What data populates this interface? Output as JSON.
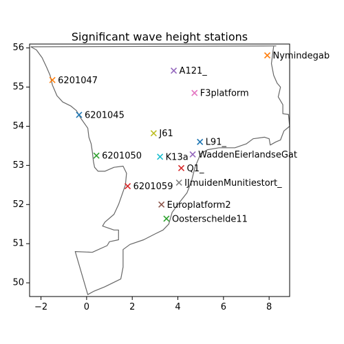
{
  "chart_data": {
    "type": "scatter",
    "title": "Significant wave height stations",
    "xlabel": "",
    "ylabel": "",
    "xlim": [
      -2.5,
      8.9
    ],
    "ylim": [
      49.65,
      56.1
    ],
    "xticks": [
      -2,
      0,
      2,
      4,
      6,
      8
    ],
    "yticks": [
      50,
      51,
      52,
      53,
      54,
      55,
      56
    ],
    "xtick_labels": [
      "−2",
      "0",
      "2",
      "4",
      "6",
      "8"
    ],
    "ytick_labels": [
      "50",
      "51",
      "52",
      "53",
      "54",
      "55",
      "56"
    ],
    "grid": false,
    "coastline_color": "#666666",
    "marker": "x",
    "points": [
      {
        "label": "Nymindegab",
        "x": 7.92,
        "y": 55.81,
        "color": "#ff7f0e"
      },
      {
        "label": "6201047",
        "x": -1.5,
        "y": 55.18,
        "color": "#ff7f0e"
      },
      {
        "label": "A121_",
        "x": 3.82,
        "y": 55.42,
        "color": "#9467bd"
      },
      {
        "label": "F3platform",
        "x": 4.73,
        "y": 54.85,
        "color": "#e377c2"
      },
      {
        "label": "6201045",
        "x": -0.33,
        "y": 54.29,
        "color": "#1f77b4"
      },
      {
        "label": "J61",
        "x": 2.94,
        "y": 53.82,
        "color": "#bcbd22"
      },
      {
        "label": "L91_",
        "x": 4.97,
        "y": 53.6,
        "color": "#1f77b4"
      },
      {
        "label": "6201050",
        "x": 0.43,
        "y": 53.25,
        "color": "#2ca02c"
      },
      {
        "label": "K13a",
        "x": 3.22,
        "y": 53.22,
        "color": "#17becf"
      },
      {
        "label": "WaddenEierlandseGat",
        "x": 4.65,
        "y": 53.28,
        "color": "#9467bd"
      },
      {
        "label": "Q1_",
        "x": 4.15,
        "y": 52.93,
        "color": "#d62728"
      },
      {
        "label": "IJmuidenMunitiestort_",
        "x": 4.05,
        "y": 52.56,
        "color": "#7f7f7f"
      },
      {
        "label": "6201059",
        "x": 1.8,
        "y": 52.47,
        "color": "#d62728"
      },
      {
        "label": "Europlatform2",
        "x": 3.28,
        "y": 52.0,
        "color": "#8c564b"
      },
      {
        "label": "Oosterschelde11",
        "x": 3.5,
        "y": 51.64,
        "color": "#2ca02c"
      }
    ]
  }
}
